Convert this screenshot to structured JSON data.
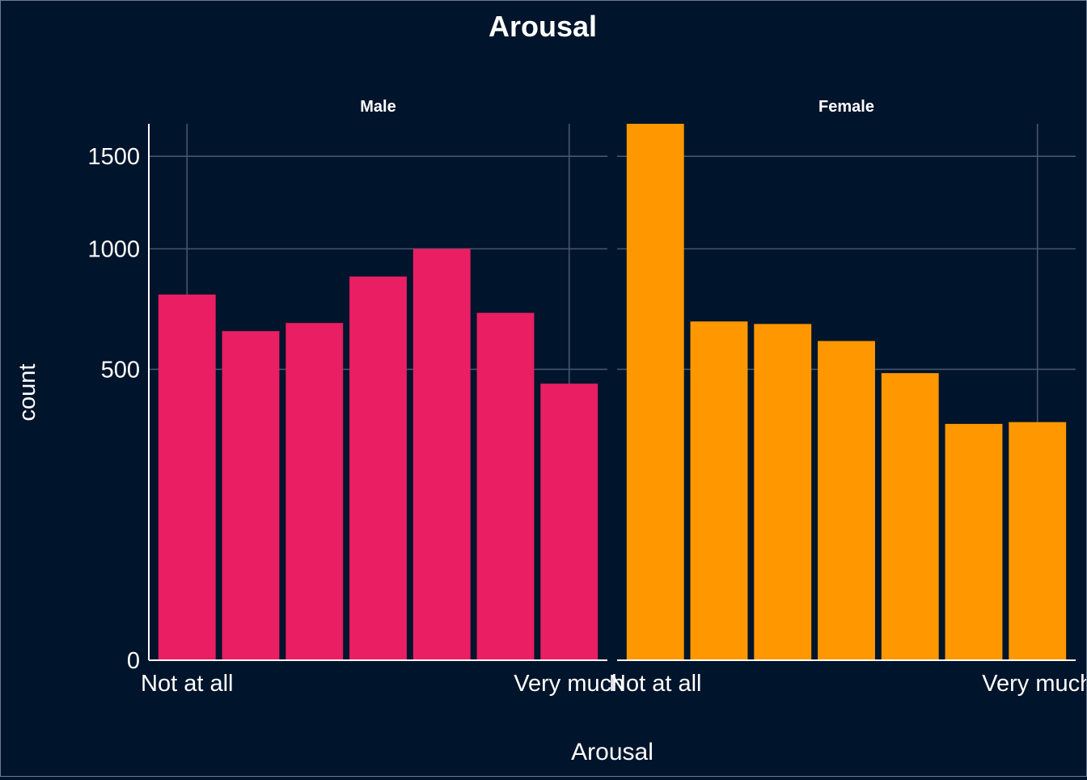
{
  "chart_data": {
    "type": "bar",
    "title": "Arousal",
    "xlabel": "Arousal",
    "ylabel": "count",
    "y_scale": "sqrt",
    "ylim": [
      0,
      1700
    ],
    "y_ticks": [
      0,
      500,
      1000,
      1500
    ],
    "y_tick_labels": [
      "0",
      "500",
      "1000",
      "1500"
    ],
    "grid": true,
    "x_tick_labels": [
      "Not at all",
      "Very much"
    ],
    "x_tick_positions": [
      1,
      7
    ],
    "categories": [
      1,
      2,
      3,
      4,
      5,
      6,
      7
    ],
    "facets": [
      {
        "label": "Male",
        "color": "#e91e63",
        "values": [
          790,
          640,
          672,
          870,
          1000,
          713,
          452
        ]
      },
      {
        "label": "Female",
        "color": "#ff9800",
        "values": [
          1700,
          678,
          668,
          602,
          487,
          330,
          335
        ]
      }
    ]
  },
  "colors": {
    "background": "#00142b",
    "grid": "#46566c",
    "text": "#ffffff",
    "axis_line": "#ffffff"
  }
}
